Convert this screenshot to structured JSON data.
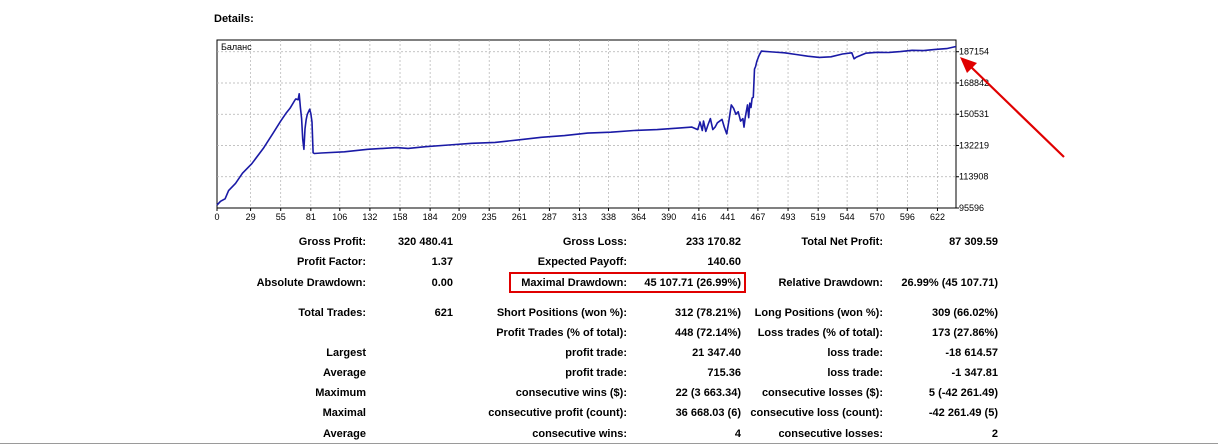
{
  "details_title": "Details:",
  "chart_data": {
    "type": "line",
    "legend_label": "Баланс",
    "line_color": "#1a1aa6",
    "x_ticks": [
      0,
      29,
      55,
      81,
      106,
      132,
      158,
      184,
      209,
      235,
      261,
      287,
      313,
      338,
      364,
      390,
      416,
      441,
      467,
      493,
      519,
      544,
      570,
      596,
      622
    ],
    "y_ticks": [
      95596,
      113908,
      132219,
      150531,
      168842,
      187154
    ],
    "xlim": [
      0,
      638
    ],
    "ylim": [
      95596,
      194020
    ],
    "grid": true,
    "points": [
      [
        0,
        97300
      ],
      [
        3,
        99500
      ],
      [
        7,
        101000
      ],
      [
        10,
        105800
      ],
      [
        16,
        110000
      ],
      [
        22,
        116000
      ],
      [
        30,
        121500
      ],
      [
        40,
        130500
      ],
      [
        48,
        139000
      ],
      [
        55,
        146500
      ],
      [
        60,
        151500
      ],
      [
        63,
        154000
      ],
      [
        67,
        158500
      ],
      [
        68,
        159500
      ],
      [
        70,
        159000
      ],
      [
        71,
        162500
      ],
      [
        72,
        154500
      ],
      [
        73,
        148000
      ],
      [
        74,
        136000
      ],
      [
        75,
        130000
      ],
      [
        76,
        142000
      ],
      [
        77,
        147500
      ],
      [
        78,
        150500
      ],
      [
        80,
        153500
      ],
      [
        81,
        151000
      ],
      [
        82,
        146000
      ],
      [
        83,
        128000
      ],
      [
        84,
        127500
      ],
      [
        90,
        127800
      ],
      [
        110,
        128500
      ],
      [
        130,
        130000
      ],
      [
        155,
        131000
      ],
      [
        165,
        130500
      ],
      [
        180,
        131500
      ],
      [
        200,
        132500
      ],
      [
        220,
        133500
      ],
      [
        240,
        134000
      ],
      [
        260,
        135500
      ],
      [
        280,
        137000
      ],
      [
        300,
        138000
      ],
      [
        320,
        139500
      ],
      [
        340,
        140000
      ],
      [
        360,
        141000
      ],
      [
        380,
        141500
      ],
      [
        400,
        142500
      ],
      [
        410,
        143000
      ],
      [
        415,
        141500
      ],
      [
        417,
        146000
      ],
      [
        419,
        141000
      ],
      [
        420,
        146500
      ],
      [
        422,
        140500
      ],
      [
        424,
        144500
      ],
      [
        426,
        148000
      ],
      [
        428,
        141500
      ],
      [
        430,
        143000
      ],
      [
        432,
        145500
      ],
      [
        436,
        147500
      ],
      [
        438,
        143000
      ],
      [
        440,
        139000
      ],
      [
        442,
        147000
      ],
      [
        444,
        156000
      ],
      [
        446,
        154000
      ],
      [
        448,
        150500
      ],
      [
        450,
        152000
      ],
      [
        452,
        146500
      ],
      [
        454,
        148000
      ],
      [
        455,
        143000
      ],
      [
        456,
        148500
      ],
      [
        458,
        156000
      ],
      [
        459,
        148500
      ],
      [
        460,
        157000
      ],
      [
        461,
        154500
      ],
      [
        462,
        160000
      ],
      [
        463,
        160500
      ],
      [
        464,
        177000
      ],
      [
        465,
        178500
      ],
      [
        466,
        181500
      ],
      [
        468,
        185000
      ],
      [
        470,
        187500
      ],
      [
        480,
        187000
      ],
      [
        490,
        186500
      ],
      [
        500,
        185500
      ],
      [
        510,
        184500
      ],
      [
        520,
        183800
      ],
      [
        530,
        184200
      ],
      [
        540,
        185800
      ],
      [
        548,
        186500
      ],
      [
        550,
        183000
      ],
      [
        552,
        184000
      ],
      [
        560,
        186300
      ],
      [
        570,
        186800
      ],
      [
        580,
        186700
      ],
      [
        590,
        187200
      ],
      [
        600,
        188000
      ],
      [
        610,
        187800
      ],
      [
        620,
        188500
      ],
      [
        630,
        189000
      ],
      [
        638,
        190200
      ]
    ]
  },
  "stats": {
    "gross_profit_label": "Gross Profit:",
    "gross_profit_value": "320 480.41",
    "gross_loss_label": "Gross Loss:",
    "gross_loss_value": "233 170.82",
    "net_profit_label": "Total Net Profit:",
    "net_profit_value": "87 309.59",
    "profit_factor_label": "Profit Factor:",
    "profit_factor_value": "1.37",
    "expected_payoff_label": "Expected Payoff:",
    "expected_payoff_value": "140.60",
    "abs_dd_label": "Absolute Drawdown:",
    "abs_dd_value": "0.00",
    "max_dd_label": "Maximal Drawdown:",
    "max_dd_value": "45 107.71 (26.99%)",
    "rel_dd_label": "Relative Drawdown:",
    "rel_dd_value": "26.99% (45 107.71)",
    "total_trades_label": "Total Trades:",
    "total_trades_value": "621",
    "short_pos_label": "Short Positions (won %):",
    "short_pos_value": "312 (78.21%)",
    "long_pos_label": "Long Positions (won %):",
    "long_pos_value": "309 (66.02%)",
    "profit_trades_label": "Profit Trades (% of total):",
    "profit_trades_value": "448 (72.14%)",
    "loss_trades_label": "Loss trades (% of total):",
    "loss_trades_value": "173 (27.86%)",
    "largest_label": "Largest",
    "largest_profit_label": "profit trade:",
    "largest_profit_value": "21 347.40",
    "largest_loss_label": "loss trade:",
    "largest_loss_value": "-18 614.57",
    "average_label": "Average",
    "average_profit_label": "profit trade:",
    "average_profit_value": "715.36",
    "average_loss_label": "loss trade:",
    "average_loss_value": "-1 347.81",
    "maximum_label": "Maximum",
    "max_cons_wins_label": "consecutive wins ($):",
    "max_cons_wins_value": "22 (3 663.34)",
    "max_cons_losses_label": "consecutive losses ($):",
    "max_cons_losses_value": "5 (-42 261.49)",
    "maximal_label": "Maximal",
    "maximal_cons_profit_label": "consecutive profit (count):",
    "maximal_cons_profit_value": "36 668.03 (6)",
    "maximal_cons_loss_label": "consecutive loss (count):",
    "maximal_cons_loss_value": "-42 261.49 (5)",
    "average2_label": "Average",
    "avg_cons_wins_label": "consecutive wins:",
    "avg_cons_wins_value": "4",
    "avg_cons_losses_label": "consecutive losses:",
    "avg_cons_losses_value": "2"
  },
  "annotation": {
    "arrow_color": "#e00000",
    "box_color": "#e00000"
  }
}
